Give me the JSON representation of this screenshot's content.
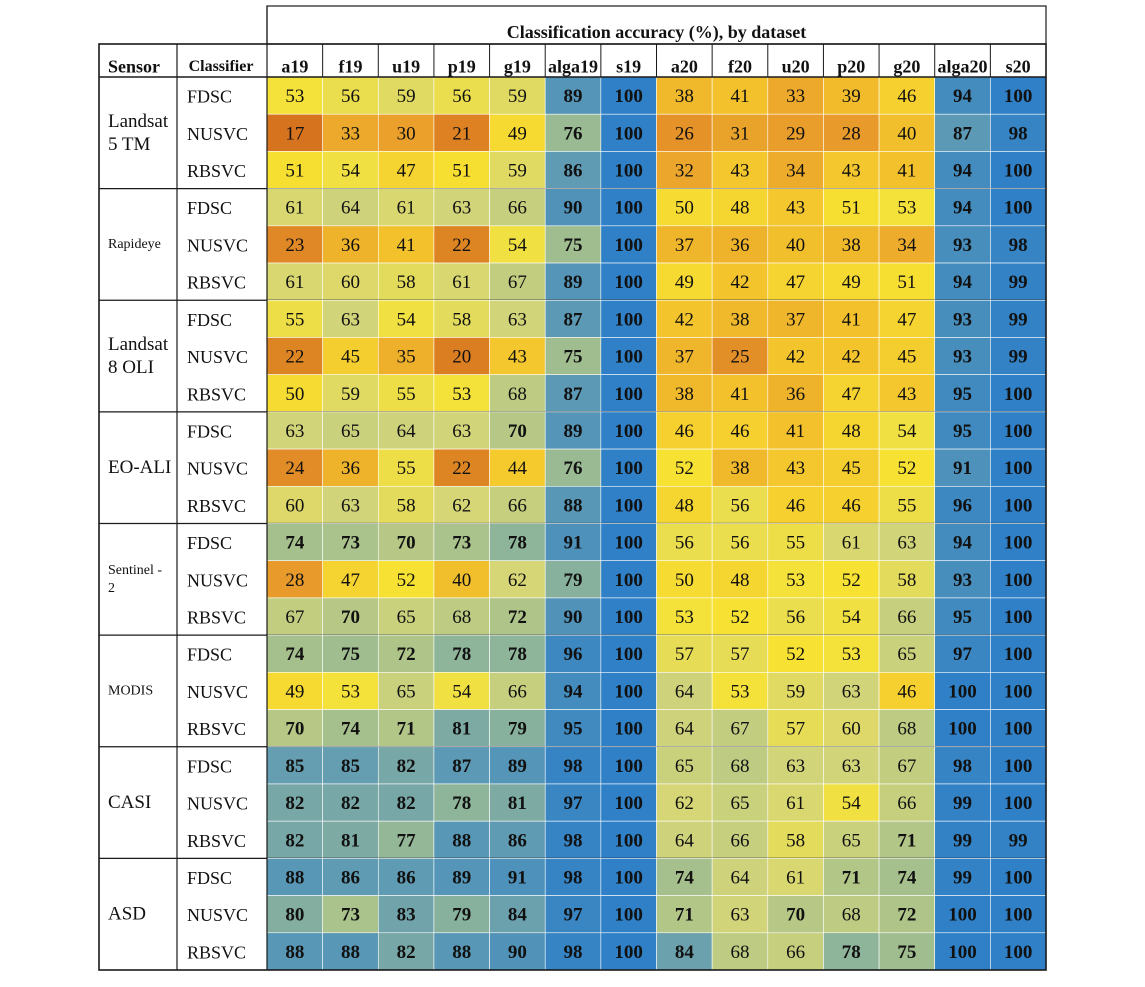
{
  "chart_data": {
    "type": "heatmap",
    "title": "Classification accuracy (%), by dataset",
    "row_header_sensor": "Sensor",
    "row_header_classifier": "Classifier",
    "columns": [
      "a19",
      "f19",
      "u19",
      "p19",
      "g19",
      "alga19",
      "s19",
      "a20",
      "f20",
      "u20",
      "p20",
      "g20",
      "alga20",
      "s20"
    ],
    "groups": [
      {
        "sensor": "Landsat 5 TM",
        "sensor_lines": [
          "Landsat",
          "5 TM"
        ],
        "sensor_small": false,
        "rows": [
          {
            "classifier": "FDSC",
            "values": [
              53,
              56,
              59,
              56,
              59,
              89,
              100,
              38,
              41,
              33,
              39,
              46,
              94,
              100
            ]
          },
          {
            "classifier": "NUSVC",
            "values": [
              17,
              33,
              30,
              21,
              49,
              76,
              100,
              26,
              31,
              29,
              28,
              40,
              87,
              98
            ]
          },
          {
            "classifier": "RBSVC",
            "values": [
              51,
              54,
              47,
              51,
              59,
              86,
              100,
              32,
              43,
              34,
              43,
              41,
              94,
              100
            ]
          }
        ]
      },
      {
        "sensor": "Rapideye",
        "sensor_lines": [
          "Rapideye"
        ],
        "sensor_small": true,
        "rows": [
          {
            "classifier": "FDSC",
            "values": [
              61,
              64,
              61,
              63,
              66,
              90,
              100,
              50,
              48,
              43,
              51,
              53,
              94,
              100
            ]
          },
          {
            "classifier": "NUSVC",
            "values": [
              23,
              36,
              41,
              22,
              54,
              75,
              100,
              37,
              36,
              40,
              38,
              34,
              93,
              98
            ]
          },
          {
            "classifier": "RBSVC",
            "values": [
              61,
              60,
              58,
              61,
              67,
              89,
              100,
              49,
              42,
              47,
              49,
              51,
              94,
              99
            ]
          }
        ]
      },
      {
        "sensor": "Landsat 8 OLI",
        "sensor_lines": [
          "Landsat",
          "8 OLI"
        ],
        "sensor_small": false,
        "rows": [
          {
            "classifier": "FDSC",
            "values": [
              55,
              63,
              54,
              58,
              63,
              87,
              100,
              42,
              38,
              37,
              41,
              47,
              93,
              99
            ]
          },
          {
            "classifier": "NUSVC",
            "values": [
              22,
              45,
              35,
              20,
              43,
              75,
              100,
              37,
              25,
              42,
              42,
              45,
              93,
              99
            ]
          },
          {
            "classifier": "RBSVC",
            "values": [
              50,
              59,
              55,
              53,
              68,
              87,
              100,
              38,
              41,
              36,
              47,
              43,
              95,
              100
            ]
          }
        ]
      },
      {
        "sensor": "EO-ALI",
        "sensor_lines": [
          "EO-ALI"
        ],
        "sensor_small": false,
        "rows": [
          {
            "classifier": "FDSC",
            "values": [
              63,
              65,
              64,
              63,
              70,
              89,
              100,
              46,
              46,
              41,
              48,
              54,
              95,
              100
            ]
          },
          {
            "classifier": "NUSVC",
            "values": [
              24,
              36,
              55,
              22,
              44,
              76,
              100,
              52,
              38,
              43,
              45,
              52,
              91,
              100
            ]
          },
          {
            "classifier": "RBSVC",
            "values": [
              60,
              63,
              58,
              62,
              66,
              88,
              100,
              48,
              56,
              46,
              46,
              55,
              96,
              100
            ]
          }
        ]
      },
      {
        "sensor": "Sentinel - 2",
        "sensor_lines": [
          "Sentinel -",
          "2"
        ],
        "sensor_small": true,
        "rows": [
          {
            "classifier": "FDSC",
            "values": [
              74,
              73,
              70,
              73,
              78,
              91,
              100,
              56,
              56,
              55,
              61,
              63,
              94,
              100
            ]
          },
          {
            "classifier": "NUSVC",
            "values": [
              28,
              47,
              52,
              40,
              62,
              79,
              100,
              50,
              48,
              53,
              52,
              58,
              93,
              100
            ]
          },
          {
            "classifier": "RBSVC",
            "values": [
              67,
              70,
              65,
              68,
              72,
              90,
              100,
              53,
              52,
              56,
              54,
              66,
              95,
              100
            ]
          }
        ]
      },
      {
        "sensor": "MODIS",
        "sensor_lines": [
          "MODIS"
        ],
        "sensor_small": true,
        "rows": [
          {
            "classifier": "FDSC",
            "values": [
              74,
              75,
              72,
              78,
              78,
              96,
              100,
              57,
              57,
              52,
              53,
              65,
              97,
              100
            ]
          },
          {
            "classifier": "NUSVC",
            "values": [
              49,
              53,
              65,
              54,
              66,
              94,
              100,
              64,
              53,
              59,
              63,
              46,
              100,
              100
            ]
          },
          {
            "classifier": "RBSVC",
            "values": [
              70,
              74,
              71,
              81,
              79,
              95,
              100,
              64,
              67,
              57,
              60,
              68,
              100,
              100
            ]
          }
        ]
      },
      {
        "sensor": "CASI",
        "sensor_lines": [
          "CASI"
        ],
        "sensor_small": false,
        "rows": [
          {
            "classifier": "FDSC",
            "values": [
              85,
              85,
              82,
              87,
              89,
              98,
              100,
              65,
              68,
              63,
              63,
              67,
              98,
              100
            ]
          },
          {
            "classifier": "NUSVC",
            "values": [
              82,
              82,
              82,
              78,
              81,
              97,
              100,
              62,
              65,
              61,
              54,
              66,
              99,
              100
            ]
          },
          {
            "classifier": "RBSVC",
            "values": [
              82,
              81,
              77,
              88,
              86,
              98,
              100,
              64,
              66,
              58,
              65,
              71,
              99,
              99
            ]
          }
        ]
      },
      {
        "sensor": "ASD",
        "sensor_lines": [
          "ASD"
        ],
        "sensor_small": false,
        "rows": [
          {
            "classifier": "FDSC",
            "values": [
              88,
              86,
              86,
              89,
              91,
              98,
              100,
              74,
              64,
              61,
              71,
              74,
              99,
              100
            ]
          },
          {
            "classifier": "NUSVC",
            "values": [
              80,
              73,
              83,
              79,
              84,
              97,
              100,
              71,
              63,
              70,
              68,
              72,
              100,
              100
            ]
          },
          {
            "classifier": "RBSVC",
            "values": [
              88,
              88,
              82,
              88,
              90,
              98,
              100,
              84,
              68,
              66,
              78,
              75,
              100,
              100
            ]
          }
        ]
      }
    ],
    "bold_threshold": 70,
    "color_scale": {
      "stops": [
        {
          "value": 17,
          "color": "#d6731e"
        },
        {
          "value": 28,
          "color": "#e89a2a"
        },
        {
          "value": 42,
          "color": "#f3c42c"
        },
        {
          "value": 52,
          "color": "#f7e233"
        },
        {
          "value": 62,
          "color": "#d6d677"
        },
        {
          "value": 74,
          "color": "#a6c08d"
        },
        {
          "value": 86,
          "color": "#5f9bb3"
        },
        {
          "value": 100,
          "color": "#2f80c6"
        }
      ]
    },
    "grid_color": "#1a1a1a",
    "cell_divider_color": "#ffffff"
  }
}
